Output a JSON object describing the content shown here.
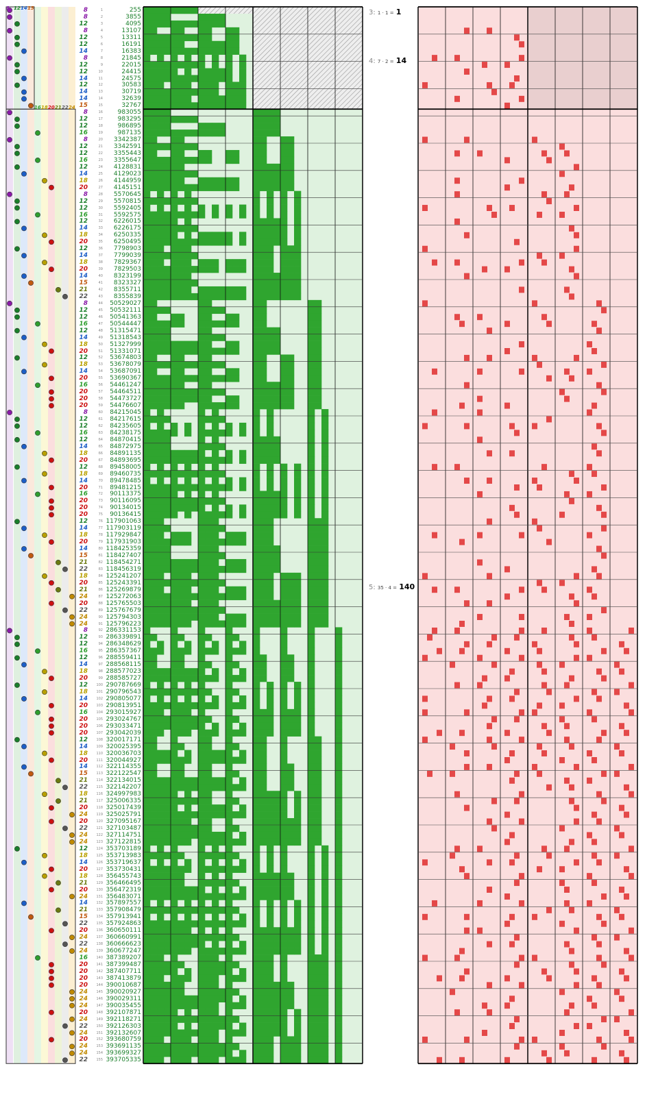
{
  "columns": {
    "weights": [
      "8",
      "12",
      "14",
      "15",
      "16",
      "18",
      "20",
      "21",
      "22",
      "24"
    ],
    "colors": {
      "8": "#8a1aa8",
      "12": "#1a7f2a",
      "14": "#1c5ec7",
      "15": "#c05a10",
      "16": "#2e9e2e",
      "18": "#b8a000",
      "20": "#cc1111",
      "21": "#6b7a10",
      "22": "#555555",
      "24": "#c08a00"
    }
  },
  "levels": [
    {
      "n": "3:",
      "formula": "1 · 1 =",
      "total": "1"
    },
    {
      "n": "4:",
      "formula": "7 · 2 =",
      "total": "14"
    },
    {
      "n": "5:",
      "formula": "35 · 4 =",
      "total": "140"
    }
  ],
  "rows": [
    {
      "w": "8",
      "v": "255"
    },
    {
      "w": "8",
      "v": "3855"
    },
    {
      "w": "12",
      "v": "4095"
    },
    {
      "w": "8",
      "v": "13107"
    },
    {
      "w": "12",
      "v": "13311"
    },
    {
      "w": "12",
      "v": "16191"
    },
    {
      "w": "14",
      "v": "16383"
    },
    {
      "w": "8",
      "v": "21845"
    },
    {
      "w": "12",
      "v": "22015"
    },
    {
      "w": "12",
      "v": "24415"
    },
    {
      "w": "14",
      "v": "24575"
    },
    {
      "w": "12",
      "v": "30583"
    },
    {
      "w": "14",
      "v": "30719"
    },
    {
      "w": "14",
      "v": "32639"
    },
    {
      "w": "15",
      "v": "32767"
    },
    {
      "w": "8",
      "v": "983055"
    },
    {
      "w": "12",
      "v": "983295"
    },
    {
      "w": "12",
      "v": "986895"
    },
    {
      "w": "16",
      "v": "987135"
    },
    {
      "w": "8",
      "v": "3342387"
    },
    {
      "w": "12",
      "v": "3342591"
    },
    {
      "w": "12",
      "v": "3355443"
    },
    {
      "w": "16",
      "v": "3355647"
    },
    {
      "w": "12",
      "v": "4128831"
    },
    {
      "w": "14",
      "v": "4129023"
    },
    {
      "w": "18",
      "v": "4144959"
    },
    {
      "w": "20",
      "v": "4145151"
    },
    {
      "w": "8",
      "v": "5570645"
    },
    {
      "w": "12",
      "v": "5570815"
    },
    {
      "w": "12",
      "v": "5592405"
    },
    {
      "w": "16",
      "v": "5592575"
    },
    {
      "w": "12",
      "v": "6226015"
    },
    {
      "w": "14",
      "v": "6226175"
    },
    {
      "w": "18",
      "v": "6250335"
    },
    {
      "w": "20",
      "v": "6250495"
    },
    {
      "w": "12",
      "v": "7798903"
    },
    {
      "w": "14",
      "v": "7799039"
    },
    {
      "w": "18",
      "v": "7829367"
    },
    {
      "w": "20",
      "v": "7829503"
    },
    {
      "w": "14",
      "v": "8323199"
    },
    {
      "w": "15",
      "v": "8323327"
    },
    {
      "w": "21",
      "v": "8355711"
    },
    {
      "w": "22",
      "v": "8355839"
    },
    {
      "w": "8",
      "v": "50529027"
    },
    {
      "w": "12",
      "v": "50532111"
    },
    {
      "w": "12",
      "v": "50541363"
    },
    {
      "w": "16",
      "v": "50544447"
    },
    {
      "w": "12",
      "v": "51315471"
    },
    {
      "w": "14",
      "v": "51318543"
    },
    {
      "w": "18",
      "v": "51327999"
    },
    {
      "w": "20",
      "v": "51331071"
    },
    {
      "w": "12",
      "v": "53674803"
    },
    {
      "w": "18",
      "v": "53678079"
    },
    {
      "w": "14",
      "v": "53687091"
    },
    {
      "w": "20",
      "v": "53690367"
    },
    {
      "w": "16",
      "v": "54461247"
    },
    {
      "w": "20",
      "v": "54464511"
    },
    {
      "w": "20",
      "v": "54473727"
    },
    {
      "w": "20",
      "v": "54476607"
    },
    {
      "w": "8",
      "v": "84215045"
    },
    {
      "w": "12",
      "v": "84217615"
    },
    {
      "w": "12",
      "v": "84235605"
    },
    {
      "w": "16",
      "v": "84238175"
    },
    {
      "w": "12",
      "v": "84870415"
    },
    {
      "w": "14",
      "v": "84872975"
    },
    {
      "w": "18",
      "v": "84891135"
    },
    {
      "w": "20",
      "v": "84893695"
    },
    {
      "w": "12",
      "v": "89458005"
    },
    {
      "w": "18",
      "v": "89460735"
    },
    {
      "w": "14",
      "v": "89478485"
    },
    {
      "w": "20",
      "v": "89481215"
    },
    {
      "w": "16",
      "v": "90113375"
    },
    {
      "w": "20",
      "v": "90116095"
    },
    {
      "w": "20",
      "v": "90134015"
    },
    {
      "w": "20",
      "v": "90136415"
    },
    {
      "w": "12",
      "v": "117901063"
    },
    {
      "w": "14",
      "v": "117903119"
    },
    {
      "w": "18",
      "v": "117929847"
    },
    {
      "w": "20",
      "v": "117931903"
    },
    {
      "w": "14",
      "v": "118425359"
    },
    {
      "w": "15",
      "v": "118427407"
    },
    {
      "w": "21",
      "v": "118454271"
    },
    {
      "w": "22",
      "v": "118456319"
    },
    {
      "w": "18",
      "v": "125241207"
    },
    {
      "w": "20",
      "v": "125243391"
    },
    {
      "w": "21",
      "v": "125269879"
    },
    {
      "w": "24",
      "v": "125272063"
    },
    {
      "w": "20",
      "v": "125765503"
    },
    {
      "w": "22",
      "v": "125767679"
    },
    {
      "w": "24",
      "v": "125794303"
    },
    {
      "w": "24",
      "v": "125796223"
    },
    {
      "w": "8",
      "v": "286331153"
    },
    {
      "w": "12",
      "v": "286339891"
    },
    {
      "w": "12",
      "v": "286348629"
    },
    {
      "w": "16",
      "v": "286357367"
    },
    {
      "w": "12",
      "v": "288559411"
    },
    {
      "w": "14",
      "v": "288568115"
    },
    {
      "w": "18",
      "v": "288577023"
    },
    {
      "w": "20",
      "v": "288585727"
    },
    {
      "w": "12",
      "v": "290787669"
    },
    {
      "w": "18",
      "v": "290796543"
    },
    {
      "w": "14",
      "v": "290805077"
    },
    {
      "w": "20",
      "v": "290813951"
    },
    {
      "w": "16",
      "v": "293015927"
    },
    {
      "w": "20",
      "v": "293024767"
    },
    {
      "w": "20",
      "v": "293033471"
    },
    {
      "w": "20",
      "v": "293042039"
    },
    {
      "w": "12",
      "v": "320017171"
    },
    {
      "w": "14",
      "v": "320025395"
    },
    {
      "w": "18",
      "v": "320036703"
    },
    {
      "w": "20",
      "v": "320044927"
    },
    {
      "w": "14",
      "v": "322114355"
    },
    {
      "w": "15",
      "v": "322122547"
    },
    {
      "w": "21",
      "v": "322134015"
    },
    {
      "w": "22",
      "v": "322142207"
    },
    {
      "w": "18",
      "v": "324997983"
    },
    {
      "w": "21",
      "v": "325006335"
    },
    {
      "w": "20",
      "v": "325017439"
    },
    {
      "w": "24",
      "v": "325025791"
    },
    {
      "w": "20",
      "v": "327095167"
    },
    {
      "w": "22",
      "v": "327103487"
    },
    {
      "w": "24",
      "v": "327114751"
    },
    {
      "w": "24",
      "v": "327122815"
    },
    {
      "w": "12",
      "v": "353703189"
    },
    {
      "w": "18",
      "v": "353713983"
    },
    {
      "w": "14",
      "v": "353719637"
    },
    {
      "w": "20",
      "v": "353730431"
    },
    {
      "w": "18",
      "v": "356455743"
    },
    {
      "w": "21",
      "v": "356466495"
    },
    {
      "w": "20",
      "v": "356472319"
    },
    {
      "w": "24",
      "v": "356483071"
    },
    {
      "w": "14",
      "v": "357897557"
    },
    {
      "w": "21",
      "v": "357908479"
    },
    {
      "w": "15",
      "v": "357913941"
    },
    {
      "w": "22",
      "v": "357924863"
    },
    {
      "w": "20",
      "v": "360650111"
    },
    {
      "w": "24",
      "v": "360660991"
    },
    {
      "w": "22",
      "v": "360666623"
    },
    {
      "w": "24",
      "v": "360677247"
    },
    {
      "w": "16",
      "v": "387389207"
    },
    {
      "w": "20",
      "v": "387399487"
    },
    {
      "w": "20",
      "v": "387407711"
    },
    {
      "w": "20",
      "v": "387413879"
    },
    {
      "w": "20",
      "v": "390010687"
    },
    {
      "w": "24",
      "v": "390020927"
    },
    {
      "w": "24",
      "v": "390029311"
    },
    {
      "w": "24",
      "v": "390035455"
    },
    {
      "w": "20",
      "v": "392107871"
    },
    {
      "w": "24",
      "v": "392118271"
    },
    {
      "w": "22",
      "v": "392126303"
    },
    {
      "w": "24",
      "v": "392132607"
    },
    {
      "w": "20",
      "v": "393680759"
    },
    {
      "w": "24",
      "v": "393691135"
    },
    {
      "w": "24",
      "v": "393699327"
    },
    {
      "w": "22",
      "v": "393705335"
    }
  ]
}
